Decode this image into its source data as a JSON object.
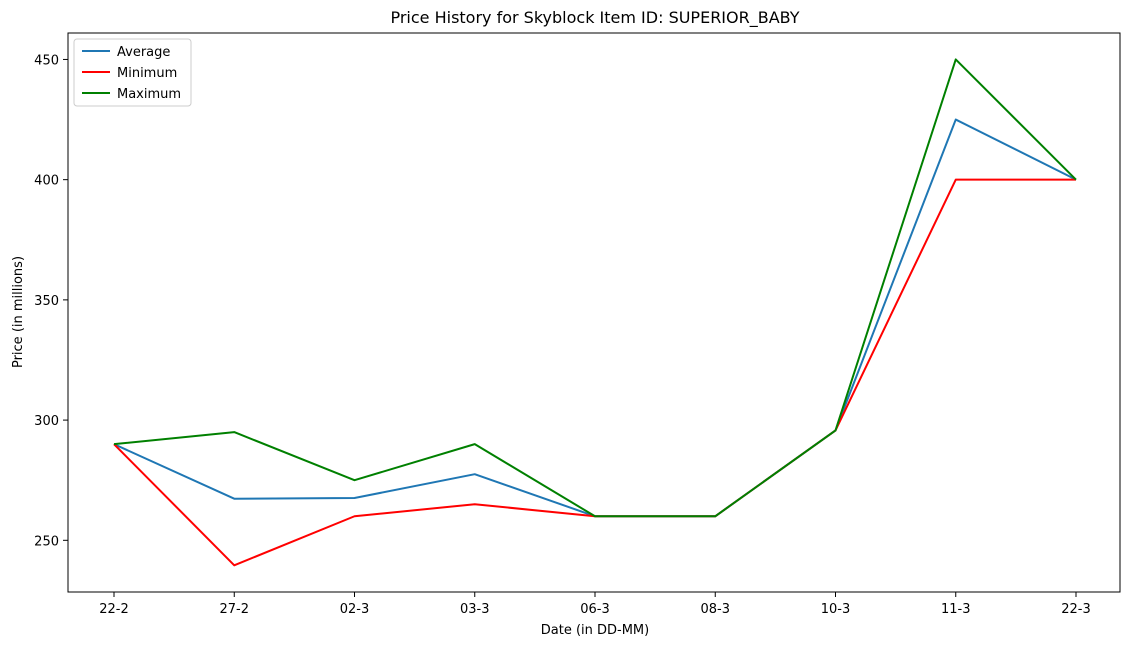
{
  "chart_data": {
    "type": "line",
    "title": "Price History for Skyblock Item ID: SUPERIOR_BABY",
    "xlabel": "Date (in DD-MM)",
    "ylabel": "Price (in millions)",
    "categories": [
      "22-2",
      "27-2",
      "02-3",
      "03-3",
      "06-3",
      "08-3",
      "10-3",
      "11-3",
      "22-3"
    ],
    "ylim": [
      228.5,
      461
    ],
    "yticks": [
      250,
      300,
      350,
      400,
      450
    ],
    "grid": false,
    "legend_position": "top-left",
    "series": [
      {
        "name": "Average",
        "color": "#1f77b4",
        "values": [
          290,
          267.3,
          267.6,
          277.5,
          260,
          260,
          295.7,
          425,
          400
        ]
      },
      {
        "name": "Minimum",
        "color": "#ff0000",
        "values": [
          290,
          239.6,
          260,
          265,
          260,
          260,
          295.7,
          400,
          400
        ]
      },
      {
        "name": "Maximum",
        "color": "#008000",
        "values": [
          290,
          295,
          275,
          290,
          260,
          260,
          295.7,
          450,
          400
        ]
      }
    ]
  }
}
